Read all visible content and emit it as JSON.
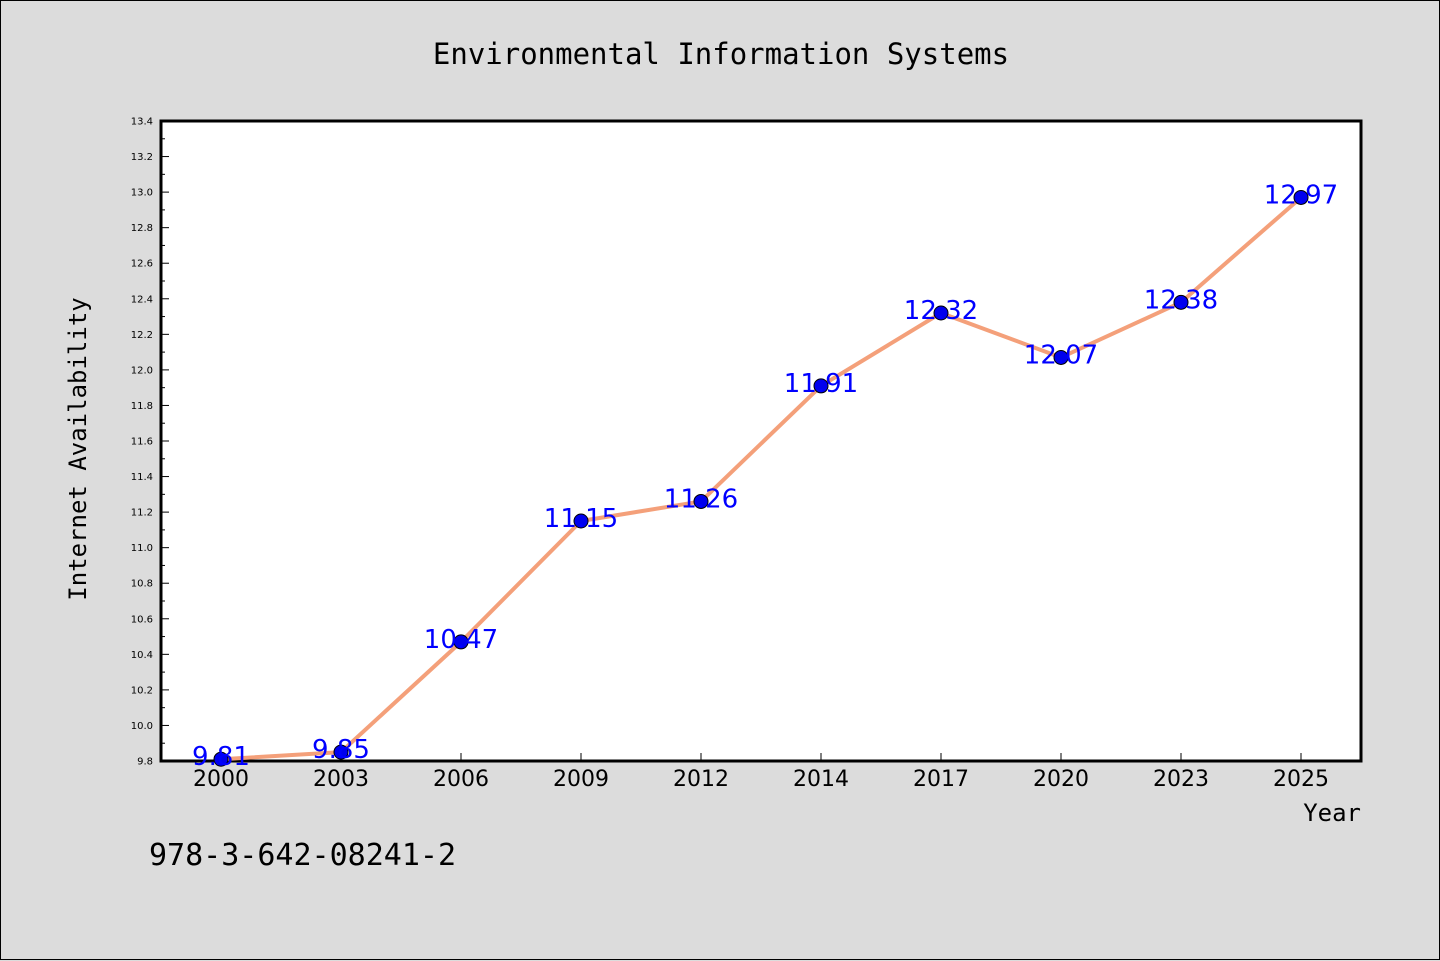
{
  "chart_data": {
    "type": "line",
    "title": "Environmental Information Systems",
    "xlabel": "Year",
    "ylabel": "Internet Availability",
    "categories": [
      "2000",
      "2003",
      "2006",
      "2009",
      "2012",
      "2014",
      "2017",
      "2020",
      "2023",
      "2025"
    ],
    "series": [
      {
        "values": [
          9.81,
          9.85,
          10.47,
          11.15,
          11.26,
          11.91,
          12.32,
          12.07,
          12.38,
          12.97
        ],
        "line_color": "#f4a07a",
        "marker_color": "#0000ee",
        "label_color": "#0000ff"
      }
    ],
    "ylim": [
      9.8,
      13.4
    ],
    "yticks": [
      9.8,
      10.0,
      10.2,
      10.4,
      10.6,
      10.8,
      11.0,
      11.2,
      11.4,
      11.6,
      11.8,
      12.0,
      12.2,
      12.4,
      12.6,
      12.8,
      13.0,
      13.2,
      13.4
    ],
    "ytick_labels": [
      "9.8",
      "10.0",
      "10.2",
      "10.4",
      "10.6",
      "10.8",
      "11.0",
      "11.2",
      "11.4",
      "11.6",
      "11.8",
      "12.0",
      "12.2",
      "12.4",
      "12.6",
      "12.8",
      "13.0",
      "13.2",
      "13.4"
    ],
    "data_labels": [
      "9.81",
      "9.85",
      "10.47",
      "11.15",
      "11.26",
      "11.91",
      "12.32",
      "12.07",
      "12.38",
      "12.97"
    ],
    "grid": false,
    "legend": "none"
  },
  "footer": {
    "isbn": "978-3-642-08241-2"
  },
  "colors": {
    "background": "#dcdcdc",
    "plot_background": "#ffffff",
    "axis": "#000000"
  }
}
